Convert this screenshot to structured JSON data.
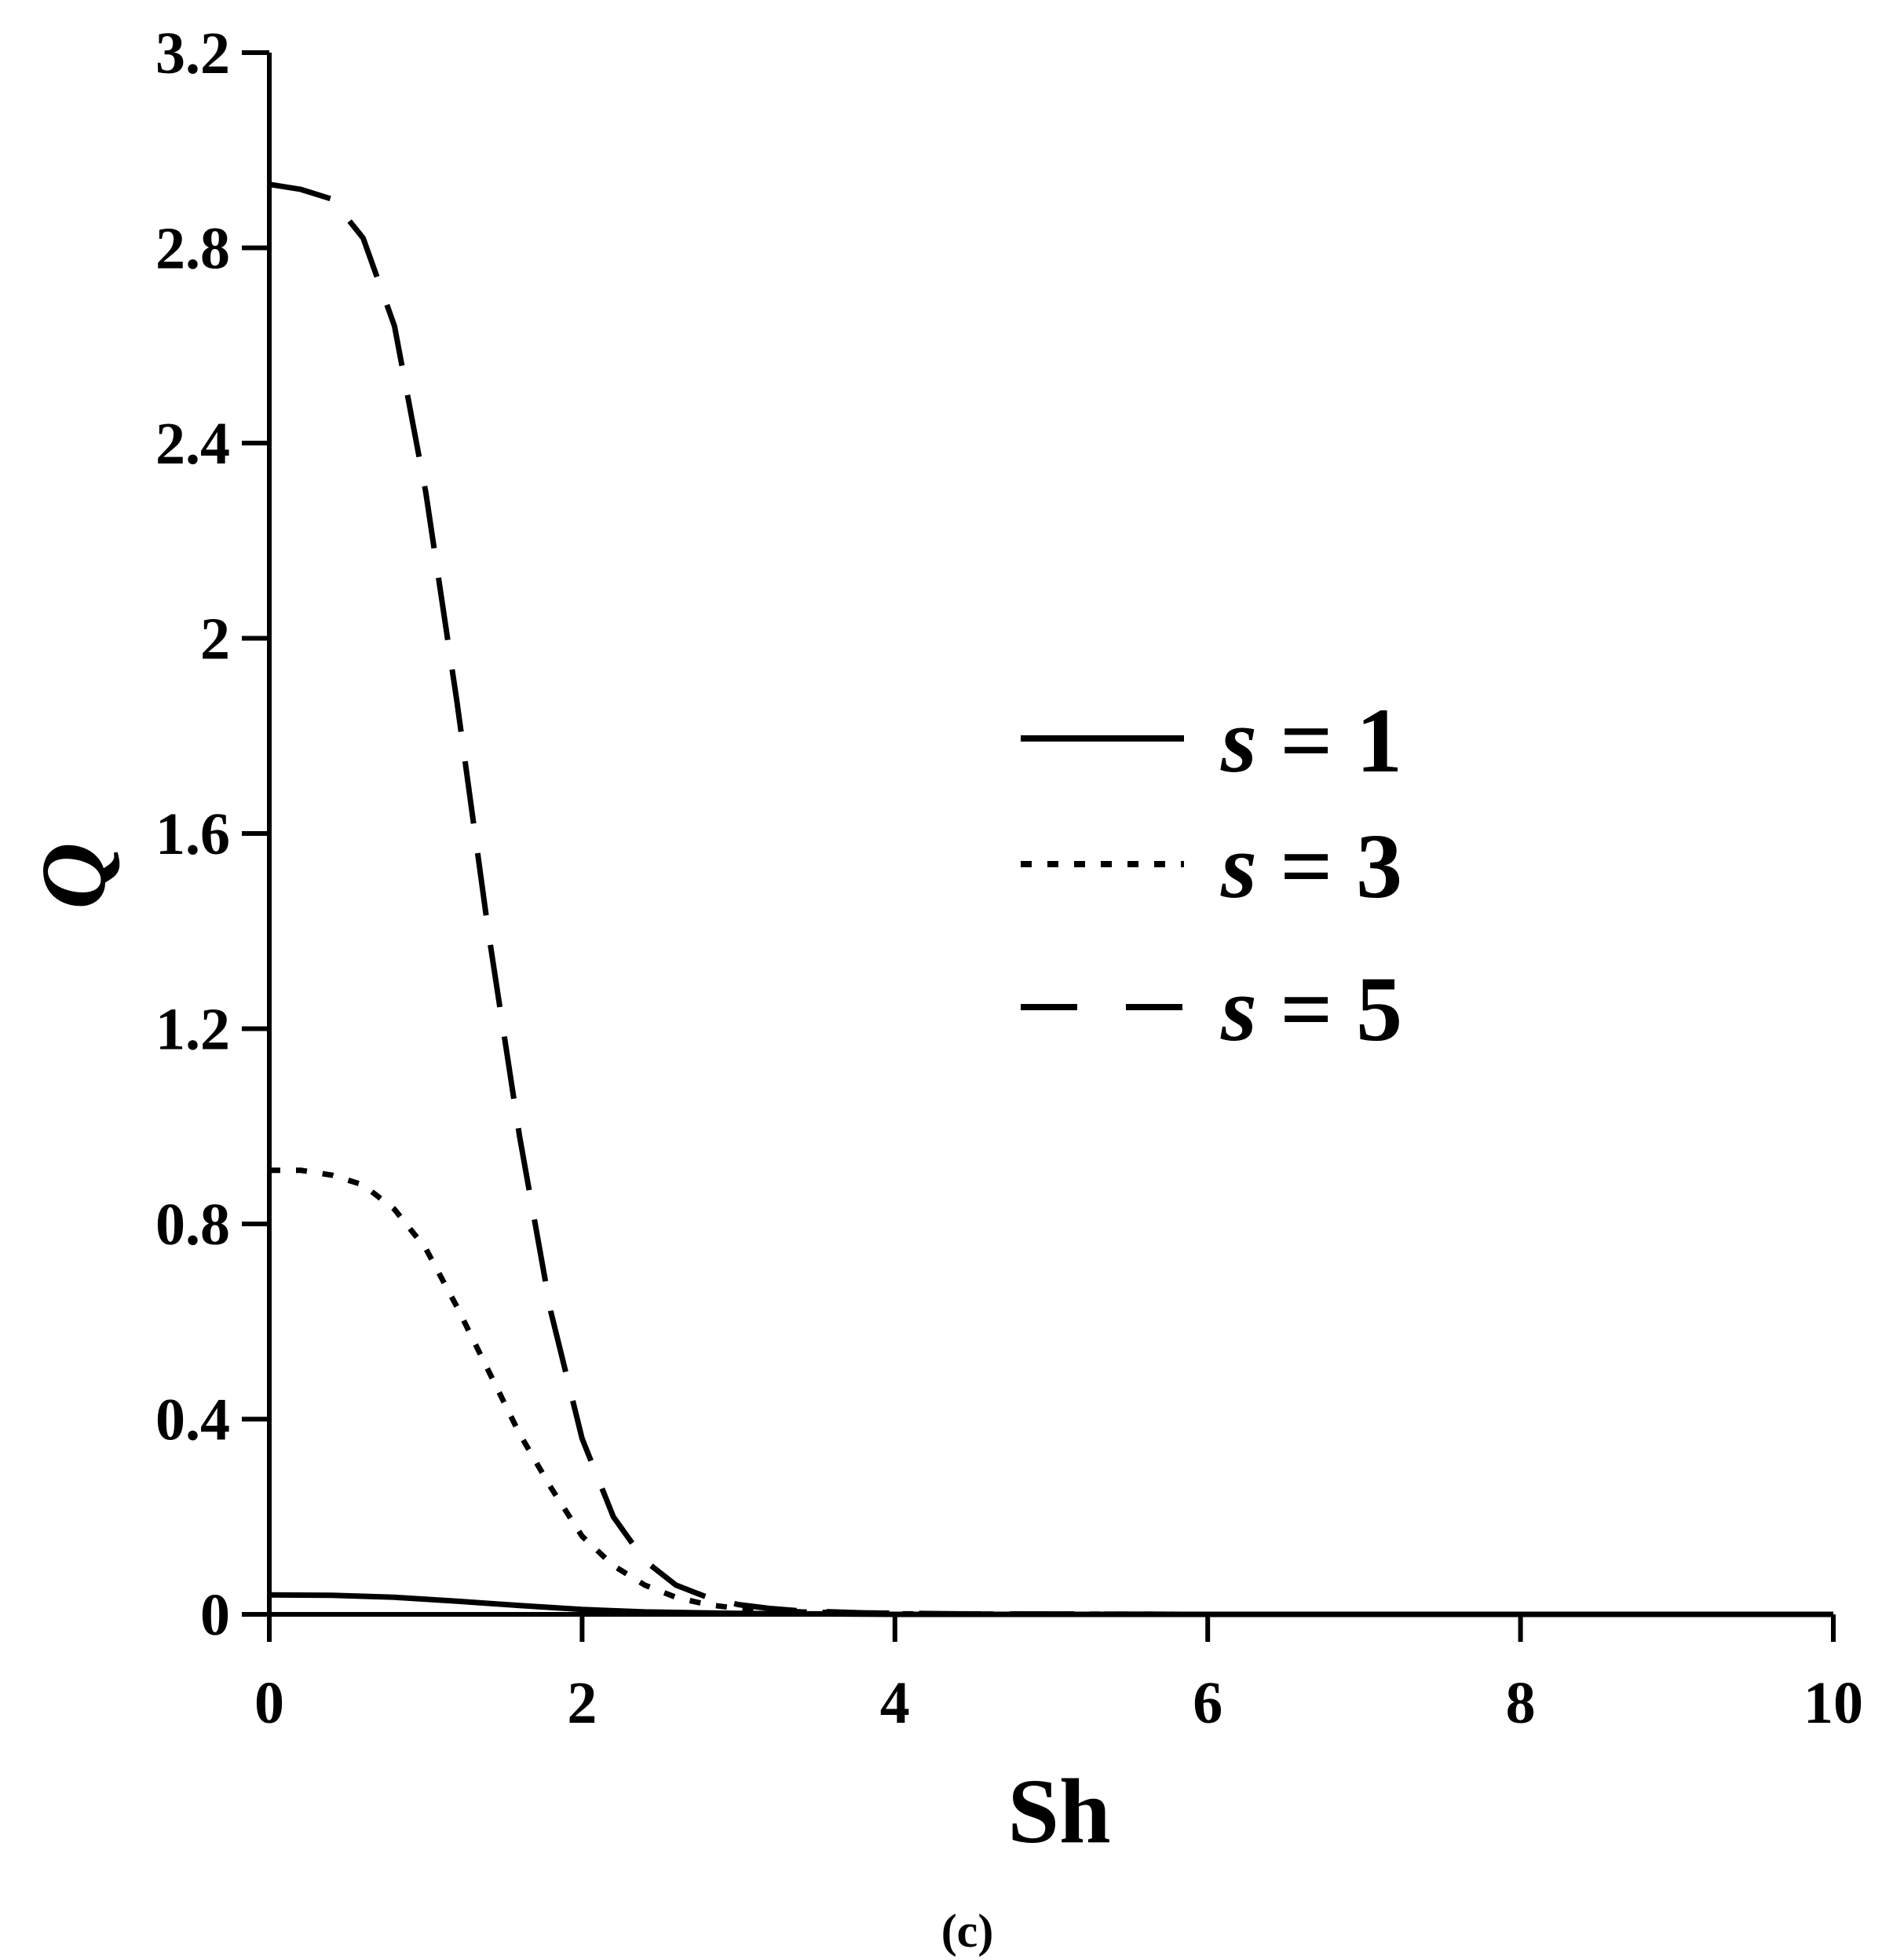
{
  "chart_data": {
    "type": "line",
    "title": "",
    "xlabel": "Sh",
    "ylabel": "Q",
    "caption": "(c)",
    "xlim": [
      0,
      10
    ],
    "ylim": [
      0,
      3.2
    ],
    "xticks": [
      "0",
      "2",
      "4",
      "6",
      "8",
      "10"
    ],
    "yticks": [
      "0",
      "0.4",
      "0.8",
      "1.2",
      "1.6",
      "2",
      "2.4",
      "2.8",
      "3.2"
    ],
    "grid": false,
    "legend_position": "right",
    "legend_var": "s",
    "series": [
      {
        "name": "s = 1",
        "s_value": "1",
        "style": "solid",
        "x": [
          0,
          0.4,
          0.8,
          1.2,
          1.6,
          2.0,
          2.4,
          3.0,
          4.0,
          6.0,
          8.0,
          10.0
        ],
        "y": [
          0.04,
          0.039,
          0.035,
          0.027,
          0.018,
          0.01,
          0.005,
          0.002,
          0.0,
          0.0,
          0.0,
          0.0
        ]
      },
      {
        "name": "s = 3",
        "s_value": "3",
        "style": "dotted",
        "x": [
          0,
          0.2,
          0.4,
          0.6,
          0.8,
          1.0,
          1.2,
          1.4,
          1.6,
          1.8,
          2.0,
          2.2,
          2.4,
          2.6,
          2.8,
          3.0,
          3.4,
          4.0,
          6.0,
          10.0
        ],
        "y": [
          0.91,
          0.91,
          0.9,
          0.88,
          0.83,
          0.75,
          0.63,
          0.5,
          0.37,
          0.26,
          0.16,
          0.1,
          0.06,
          0.035,
          0.02,
          0.012,
          0.005,
          0.001,
          0.0,
          0.0
        ]
      },
      {
        "name": "s = 5",
        "s_value": "5",
        "style": "dashed",
        "x": [
          0,
          0.2,
          0.4,
          0.6,
          0.8,
          1.0,
          1.2,
          1.4,
          1.6,
          1.8,
          2.0,
          2.2,
          2.4,
          2.6,
          2.8,
          3.0,
          3.2,
          3.4,
          3.8,
          4.4,
          6.0,
          10.0
        ],
        "y": [
          2.93,
          2.92,
          2.9,
          2.82,
          2.64,
          2.3,
          1.87,
          1.4,
          0.98,
          0.62,
          0.36,
          0.2,
          0.11,
          0.06,
          0.035,
          0.02,
          0.012,
          0.007,
          0.003,
          0.001,
          0.0,
          0.0
        ]
      }
    ]
  }
}
